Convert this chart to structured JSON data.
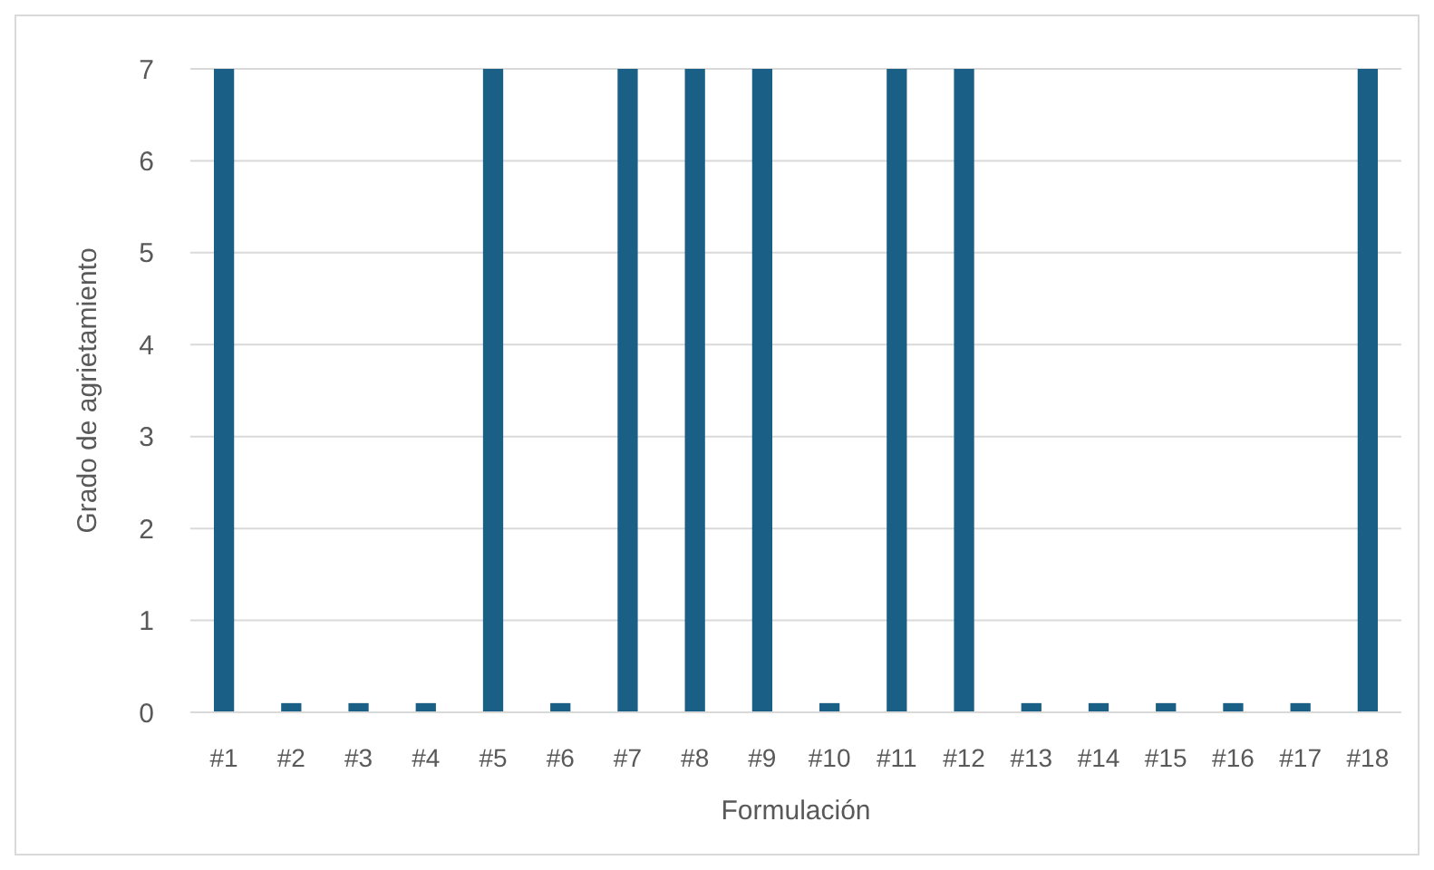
{
  "chart_data": {
    "type": "bar",
    "xlabel": "Formulación",
    "ylabel": "Grado de agrietamiento",
    "categories": [
      "#1",
      "#2",
      "#3",
      "#4",
      "#5",
      "#6",
      "#7",
      "#8",
      "#9",
      "#10",
      "#11",
      "#12",
      "#13",
      "#14",
      "#15",
      "#16",
      "#17",
      "#18"
    ],
    "values": [
      7,
      0.1,
      0.1,
      0.1,
      7,
      0.1,
      7,
      7,
      7,
      0.1,
      7,
      7,
      0.1,
      0.1,
      0.1,
      0.1,
      0.1,
      7
    ],
    "color": "#1a5f85",
    "ylim": [
      0,
      7
    ],
    "yticks": [
      0,
      1,
      2,
      3,
      4,
      5,
      6,
      7
    ],
    "grid": "y"
  }
}
